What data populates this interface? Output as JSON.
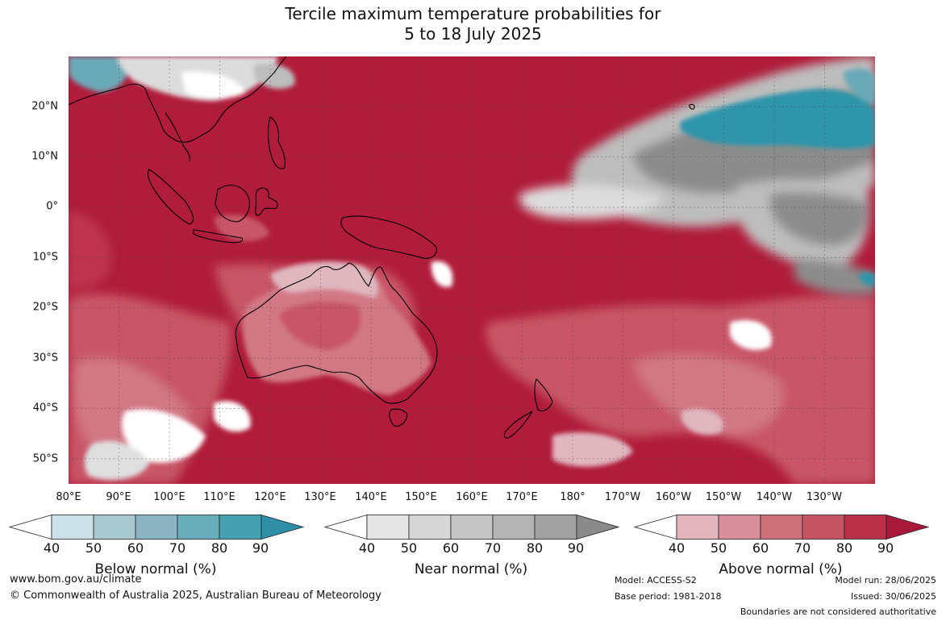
{
  "title": {
    "line1": "Tercile maximum temperature probabilities for",
    "line2": "5 to 18 July 2025"
  },
  "map": {
    "lat_labels": [
      "20°N",
      "10°N",
      "0°",
      "10°S",
      "20°S",
      "30°S",
      "40°S",
      "50°S"
    ],
    "lon_labels": [
      "80°E",
      "90°E",
      "100°E",
      "110°E",
      "120°E",
      "130°E",
      "140°E",
      "150°E",
      "160°E",
      "170°E",
      "180°",
      "170°W",
      "160°W",
      "150°W",
      "140°W",
      "130°W"
    ],
    "extent": {
      "lon_min": 80,
      "lon_max": 240,
      "lat_min": -55,
      "lat_max": 30
    },
    "palette": {
      "above_90": "#b01c3a",
      "above_80": "#bf3550",
      "above_70": "#c85668",
      "above_60": "#d27885",
      "above_50": "#e0b7bf",
      "below_80": "#2e95aa",
      "below_60": "#6aa9b8",
      "near_70": "#8c8c8c",
      "near_50": "#bdbdbd",
      "white": "#ffffff"
    }
  },
  "legends": [
    {
      "label": "Below normal (%)",
      "ticks": [
        "40",
        "50",
        "60",
        "70",
        "80",
        "90"
      ],
      "colors": [
        "#ffffff",
        "#cde2e8",
        "#a8c9cf",
        "#8cb5c4",
        "#6aadba",
        "#449fb0",
        "#2e8ea3"
      ]
    },
    {
      "label": "Near normal (%)",
      "ticks": [
        "40",
        "50",
        "60",
        "70",
        "80",
        "90"
      ],
      "colors": [
        "#ffffff",
        "#e6e6e6",
        "#d6d6d6",
        "#c6c6c6",
        "#b4b4b4",
        "#a2a2a2",
        "#8a8a8a"
      ]
    },
    {
      "label": "Above normal (%)",
      "ticks": [
        "40",
        "50",
        "60",
        "70",
        "80",
        "90"
      ],
      "colors": [
        "#ffffff",
        "#e3b6bf",
        "#d88f9b",
        "#cc7079",
        "#c45462",
        "#b93048",
        "#a8193a"
      ]
    }
  ],
  "footer": {
    "website": "www.bom.gov.au/climate",
    "copyright": "© Commonwealth of Australia 2025, Australian Bureau of Meteorology",
    "model": "Model: ACCESS-S2",
    "base_period": "Base period: 1981-2018",
    "model_run": "Model run: 28/06/2025",
    "issued": "Issued: 30/06/2025",
    "disclaimer": "Boundaries are not considered authoritative"
  }
}
